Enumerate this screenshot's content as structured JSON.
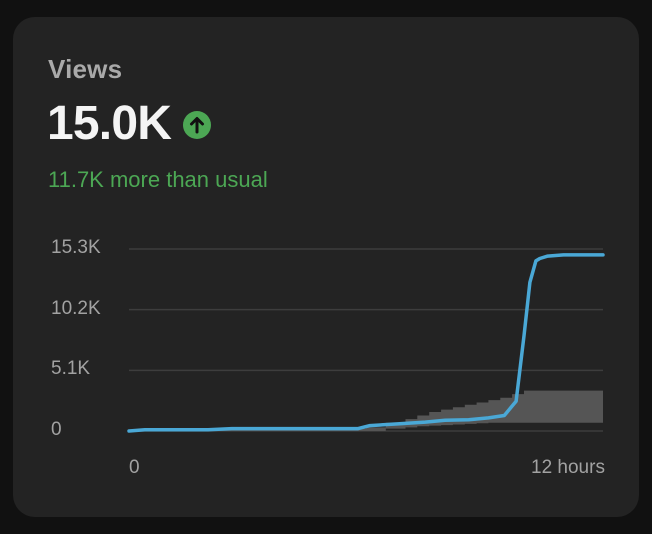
{
  "card": {
    "title": "Views",
    "value": "15.0K",
    "trend_icon": "arrow-up-circle-icon",
    "comparison": "11.7K more than usual"
  },
  "colors": {
    "background": "#111111",
    "card": "#232323",
    "positive": "#4ca754",
    "line": "#4aa8d6",
    "typical_band": "#555555"
  },
  "chart_data": {
    "type": "area",
    "title": "",
    "xlabel": "",
    "ylabel": "",
    "ylim": [
      0,
      15300
    ],
    "xlim": [
      0,
      12
    ],
    "y_ticks": [
      {
        "value": 0,
        "label": "0"
      },
      {
        "value": 5100,
        "label": "5.1K"
      },
      {
        "value": 10200,
        "label": "10.2K"
      },
      {
        "value": 15300,
        "label": "15.3K"
      }
    ],
    "x_ticks": [
      {
        "value": 0,
        "label": "0"
      },
      {
        "value": 12,
        "label": "12 hours"
      }
    ],
    "grid": true,
    "series": [
      {
        "name": "Views",
        "type": "line",
        "x": [
          0,
          0.4,
          2,
          2.6,
          5.8,
          6.1,
          6.8,
          7.5,
          8,
          8.6,
          9.1,
          9.5,
          9.8,
          10.0,
          10.15,
          10.3,
          10.4,
          10.6,
          11,
          12
        ],
        "y": [
          0,
          100,
          100,
          200,
          200,
          450,
          600,
          750,
          900,
          950,
          1100,
          1300,
          2500,
          8000,
          12500,
          14300,
          14500,
          14700,
          14800,
          14800
        ]
      },
      {
        "name": "Typical range",
        "type": "band",
        "x": [
          0,
          2,
          2.6,
          6,
          6.5,
          7,
          7.3,
          7.6,
          7.9,
          8.2,
          8.5,
          8.8,
          9.1,
          9.4,
          9.7,
          10,
          12
        ],
        "low": [
          0,
          0,
          0,
          0,
          200,
          300,
          400,
          450,
          500,
          550,
          600,
          650,
          700,
          700,
          700,
          700,
          700
        ],
        "high": [
          100,
          100,
          200,
          300,
          700,
          1000,
          1300,
          1600,
          1800,
          2000,
          2200,
          2400,
          2600,
          2800,
          3100,
          3400,
          3400
        ]
      }
    ]
  }
}
